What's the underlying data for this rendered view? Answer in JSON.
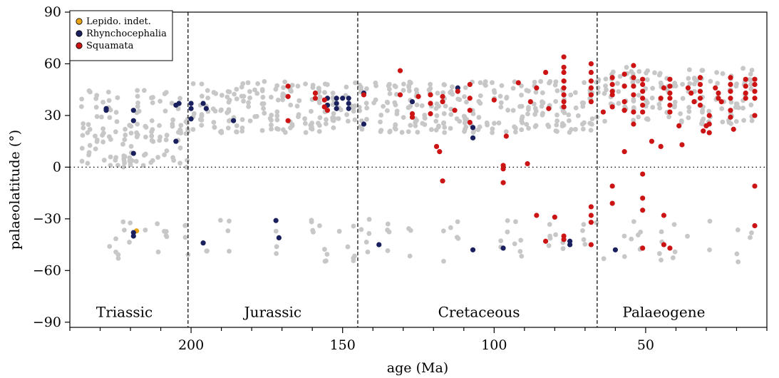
{
  "chart_data": {
    "type": "scatter",
    "title": "",
    "xlabel": "age (Ma)",
    "ylabel": "palaeolatitude (°)",
    "xlim": [
      240,
      10
    ],
    "ylim": [
      -93,
      90
    ],
    "x_reversed": true,
    "x_ticks": [
      200,
      150,
      100,
      50
    ],
    "y_ticks": [
      -90,
      -60,
      -30,
      0,
      30,
      60,
      90
    ],
    "grid": false,
    "legend_position": "top-left",
    "period_boundaries": [
      201,
      145,
      66
    ],
    "zero_line": 0,
    "periods": [
      {
        "label": "Triassic",
        "x_center": 222
      },
      {
        "label": "Jurassic",
        "x_center": 173
      },
      {
        "label": "Cretaceous",
        "x_center": 105
      },
      {
        "label": "Palaeogene",
        "x_center": 44
      }
    ],
    "background_color": "#c7c7c7",
    "series": [
      {
        "name": "Lepido. indet.",
        "color": "#e8a317",
        "points": [
          [
            218,
            -37
          ],
          [
            155,
            36
          ]
        ]
      },
      {
        "name": "Rhynchocephalia",
        "color": "#1a1f5e",
        "points": [
          [
            228,
            34
          ],
          [
            228,
            33
          ],
          [
            219,
            33
          ],
          [
            219,
            27
          ],
          [
            219,
            8
          ],
          [
            219,
            -38
          ],
          [
            219,
            -40
          ],
          [
            205,
            15
          ],
          [
            205,
            36
          ],
          [
            204,
            37
          ],
          [
            200,
            37
          ],
          [
            200,
            34
          ],
          [
            200,
            28
          ],
          [
            196,
            37
          ],
          [
            195,
            34
          ],
          [
            196,
            -44
          ],
          [
            186,
            27
          ],
          [
            172,
            -31
          ],
          [
            171,
            -41
          ],
          [
            155,
            40
          ],
          [
            155,
            36
          ],
          [
            152,
            40
          ],
          [
            152,
            37
          ],
          [
            152,
            34
          ],
          [
            150,
            40
          ],
          [
            148,
            40
          ],
          [
            148,
            37
          ],
          [
            148,
            34
          ],
          [
            143,
            43
          ],
          [
            143,
            25
          ],
          [
            138,
            -45
          ],
          [
            127,
            38
          ],
          [
            112,
            46
          ],
          [
            107,
            23
          ],
          [
            107,
            17
          ],
          [
            107,
            -48
          ],
          [
            97,
            -47
          ],
          [
            75,
            -43
          ],
          [
            75,
            -45
          ],
          [
            60,
            -48
          ]
        ]
      },
      {
        "name": "Squamata",
        "color": "#cc1414",
        "points": [
          [
            168,
            47
          ],
          [
            168,
            41
          ],
          [
            168,
            27
          ],
          [
            159,
            43
          ],
          [
            159,
            40
          ],
          [
            156,
            39
          ],
          [
            156,
            35
          ],
          [
            155,
            33
          ],
          [
            143,
            42
          ],
          [
            131,
            56
          ],
          [
            131,
            42
          ],
          [
            127,
            31
          ],
          [
            127,
            29
          ],
          [
            125,
            41
          ],
          [
            121,
            42
          ],
          [
            121,
            37
          ],
          [
            121,
            31
          ],
          [
            119,
            12
          ],
          [
            118,
            9
          ],
          [
            117,
            41
          ],
          [
            117,
            38
          ],
          [
            117,
            -8
          ],
          [
            113,
            33
          ],
          [
            112,
            44
          ],
          [
            108,
            48
          ],
          [
            108,
            40
          ],
          [
            108,
            33
          ],
          [
            108,
            26
          ],
          [
            100,
            39
          ],
          [
            97,
            1
          ],
          [
            97,
            -1
          ],
          [
            97,
            -9
          ],
          [
            96,
            18
          ],
          [
            92,
            49
          ],
          [
            89,
            2
          ],
          [
            88,
            38
          ],
          [
            86,
            -28
          ],
          [
            86,
            46
          ],
          [
            83,
            55
          ],
          [
            83,
            -43
          ],
          [
            82,
            34
          ],
          [
            80,
            -29
          ],
          [
            77,
            64
          ],
          [
            77,
            58
          ],
          [
            77,
            55
          ],
          [
            77,
            50
          ],
          [
            77,
            46
          ],
          [
            77,
            42
          ],
          [
            77,
            38
          ],
          [
            77,
            35
          ],
          [
            77,
            -40
          ],
          [
            77,
            -42
          ],
          [
            68,
            60
          ],
          [
            68,
            55
          ],
          [
            68,
            50
          ],
          [
            68,
            46
          ],
          [
            68,
            42
          ],
          [
            68,
            38
          ],
          [
            68,
            -23
          ],
          [
            68,
            -28
          ],
          [
            68,
            -32
          ],
          [
            68,
            -45
          ],
          [
            64,
            32
          ],
          [
            61,
            52
          ],
          [
            61,
            48
          ],
          [
            61,
            44
          ],
          [
            61,
            42
          ],
          [
            61,
            35
          ],
          [
            61,
            -11
          ],
          [
            61,
            -21
          ],
          [
            57,
            54
          ],
          [
            57,
            47
          ],
          [
            57,
            38
          ],
          [
            57,
            33
          ],
          [
            57,
            9
          ],
          [
            57,
            33
          ],
          [
            54,
            59
          ],
          [
            54,
            52
          ],
          [
            54,
            47
          ],
          [
            54,
            42
          ],
          [
            54,
            32
          ],
          [
            54,
            25
          ],
          [
            51,
            51
          ],
          [
            51,
            48
          ],
          [
            51,
            44
          ],
          [
            51,
            40
          ],
          [
            51,
            36
          ],
          [
            51,
            32
          ],
          [
            51,
            -4
          ],
          [
            51,
            -18
          ],
          [
            51,
            -25
          ],
          [
            51,
            -47
          ],
          [
            48,
            15
          ],
          [
            45,
            12
          ],
          [
            45,
            40
          ],
          [
            44,
            46
          ],
          [
            44,
            -28
          ],
          [
            44,
            -45
          ],
          [
            42,
            51
          ],
          [
            42,
            47
          ],
          [
            42,
            43
          ],
          [
            42,
            40
          ],
          [
            42,
            36
          ],
          [
            42,
            32
          ],
          [
            42,
            -47
          ],
          [
            39,
            24
          ],
          [
            38,
            13
          ],
          [
            36,
            46
          ],
          [
            35,
            43
          ],
          [
            34,
            38
          ],
          [
            32,
            52
          ],
          [
            32,
            48
          ],
          [
            32,
            44
          ],
          [
            32,
            40
          ],
          [
            32,
            36
          ],
          [
            31,
            21
          ],
          [
            30,
            24
          ],
          [
            29,
            30
          ],
          [
            29,
            25
          ],
          [
            29,
            20
          ],
          [
            27,
            46
          ],
          [
            26,
            43
          ],
          [
            26,
            40
          ],
          [
            25,
            38
          ],
          [
            22,
            52
          ],
          [
            22,
            48
          ],
          [
            22,
            44
          ],
          [
            22,
            40
          ],
          [
            22,
            33
          ],
          [
            22,
            29
          ],
          [
            21,
            22
          ],
          [
            17,
            51
          ],
          [
            17,
            47
          ],
          [
            17,
            43
          ],
          [
            17,
            40
          ],
          [
            14,
            51
          ],
          [
            14,
            48
          ],
          [
            14,
            44
          ],
          [
            14,
            40
          ],
          [
            14,
            30
          ],
          [
            14,
            -11
          ],
          [
            14,
            -34
          ]
        ]
      }
    ]
  }
}
